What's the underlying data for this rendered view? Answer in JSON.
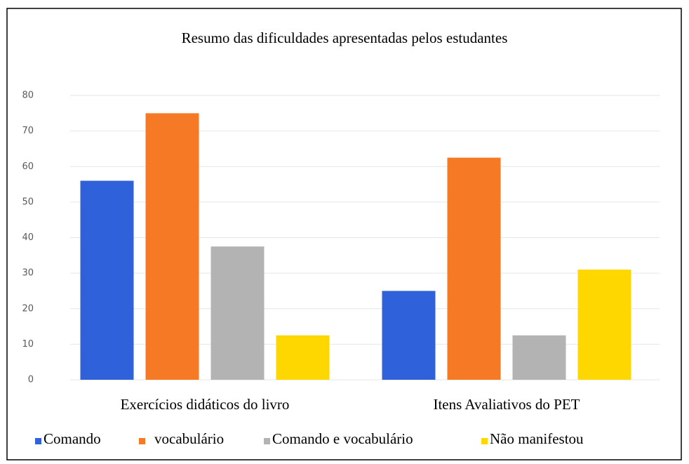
{
  "chart_data": {
    "type": "bar",
    "title": "Resumo das dificuldades apresentadas pelos estudantes",
    "categories": [
      "Exercícios didáticos do livro",
      "Itens Avaliativos do PET"
    ],
    "series": [
      {
        "name": "Comando",
        "color": "#2f62da",
        "values": [
          56,
          25
        ]
      },
      {
        "name": "vocabulário",
        "color": "#f67a25",
        "values": [
          75,
          62.5
        ]
      },
      {
        "name": "Comando e vocabulário",
        "color": "#b3b3b3",
        "values": [
          37.5,
          12.5
        ]
      },
      {
        "name": "Não manifestou",
        "color": "#ffd700",
        "values": [
          12.5,
          31
        ]
      }
    ],
    "ylim": [
      0,
      80
    ],
    "yticks": [
      0,
      10,
      20,
      30,
      40,
      50,
      60,
      70,
      80
    ],
    "grid": true,
    "legend": "bottom"
  }
}
